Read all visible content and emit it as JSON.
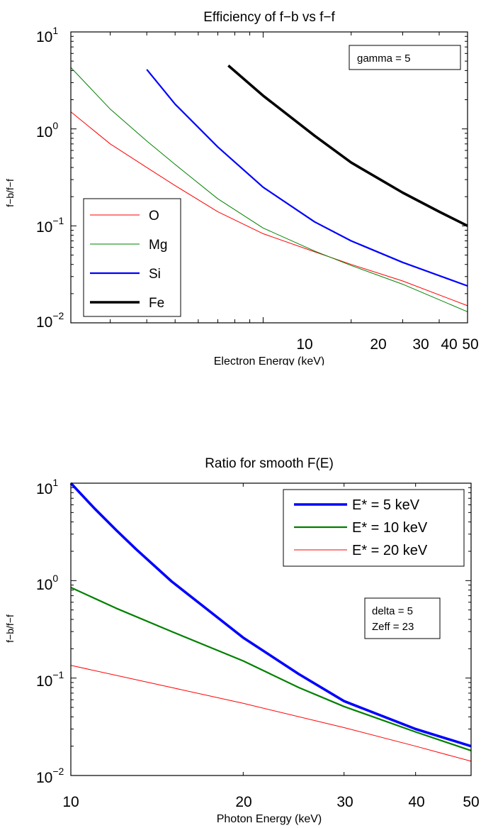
{
  "chart_data": [
    {
      "type": "line",
      "title": "Efficiency of f−b vs f−f",
      "xlabel": "Electron Energy (keV)",
      "ylabel": "f−b/f−f",
      "xscale": "log",
      "yscale": "log",
      "xlim": [
        2.2,
        50
      ],
      "ylim": [
        0.01,
        10
      ],
      "grid": false,
      "legend_position": "bottom-left",
      "x_tick_labels": [
        "10",
        "20",
        "30",
        "40",
        "50"
      ],
      "annotation": "gamma = 5",
      "series": [
        {
          "name": "O",
          "color": "#ff0000",
          "width": "thin",
          "x": [
            2.2,
            3,
            4,
            5,
            7,
            10,
            15,
            20,
            30,
            50
          ],
          "y": [
            1.5,
            0.7,
            0.4,
            0.26,
            0.14,
            0.083,
            0.054,
            0.04,
            0.027,
            0.015
          ]
        },
        {
          "name": "Mg",
          "color": "#008000",
          "width": "thin",
          "x": [
            2.2,
            3,
            4,
            5,
            7,
            10,
            15,
            20,
            30,
            50
          ],
          "y": [
            4.3,
            1.6,
            0.75,
            0.43,
            0.19,
            0.095,
            0.055,
            0.039,
            0.025,
            0.013
          ]
        },
        {
          "name": "Si",
          "color": "#0000ff",
          "width": "medium",
          "x": [
            4,
            5,
            7,
            10,
            15,
            20,
            30,
            50
          ],
          "y": [
            4.1,
            1.8,
            0.65,
            0.25,
            0.11,
            0.07,
            0.042,
            0.024
          ]
        },
        {
          "name": "Fe",
          "color": "#000000",
          "width": "thick",
          "x": [
            7.6,
            10,
            15,
            20,
            30,
            40,
            50
          ],
          "y": [
            4.5,
            2.2,
            0.85,
            0.45,
            0.22,
            0.14,
            0.1
          ]
        }
      ]
    },
    {
      "type": "line",
      "title": "Ratio for smooth F(E)",
      "xlabel": "Photon Energy (keV)",
      "ylabel": "f−b/f−f",
      "xscale": "log",
      "yscale": "log",
      "xlim": [
        10,
        50
      ],
      "ylim": [
        0.01,
        10
      ],
      "grid": false,
      "legend_position": "top-right",
      "x_tick_labels": [
        "10",
        "20",
        "30",
        "40",
        "50"
      ],
      "annotation_lines": [
        "delta = 5",
        "Zeff = 23"
      ],
      "series": [
        {
          "name": "E* = 5 keV",
          "color": "#0000ff",
          "width": "thick",
          "x": [
            10,
            11,
            12,
            13,
            15,
            17,
            20,
            25,
            30,
            40,
            50
          ],
          "y": [
            10,
            5.5,
            3.3,
            2.1,
            0.98,
            0.55,
            0.26,
            0.11,
            0.058,
            0.03,
            0.02
          ]
        },
        {
          "name": "E* = 10 keV",
          "color": "#008000",
          "width": "medium",
          "x": [
            10,
            12,
            15,
            20,
            25,
            30,
            40,
            50
          ],
          "y": [
            0.85,
            0.52,
            0.3,
            0.15,
            0.08,
            0.051,
            0.028,
            0.018
          ]
        },
        {
          "name": "E* = 20 keV",
          "color": "#ff0000",
          "width": "thin",
          "x": [
            10,
            15,
            20,
            30,
            40,
            50
          ],
          "y": [
            0.135,
            0.08,
            0.055,
            0.031,
            0.02,
            0.014
          ]
        }
      ]
    }
  ]
}
